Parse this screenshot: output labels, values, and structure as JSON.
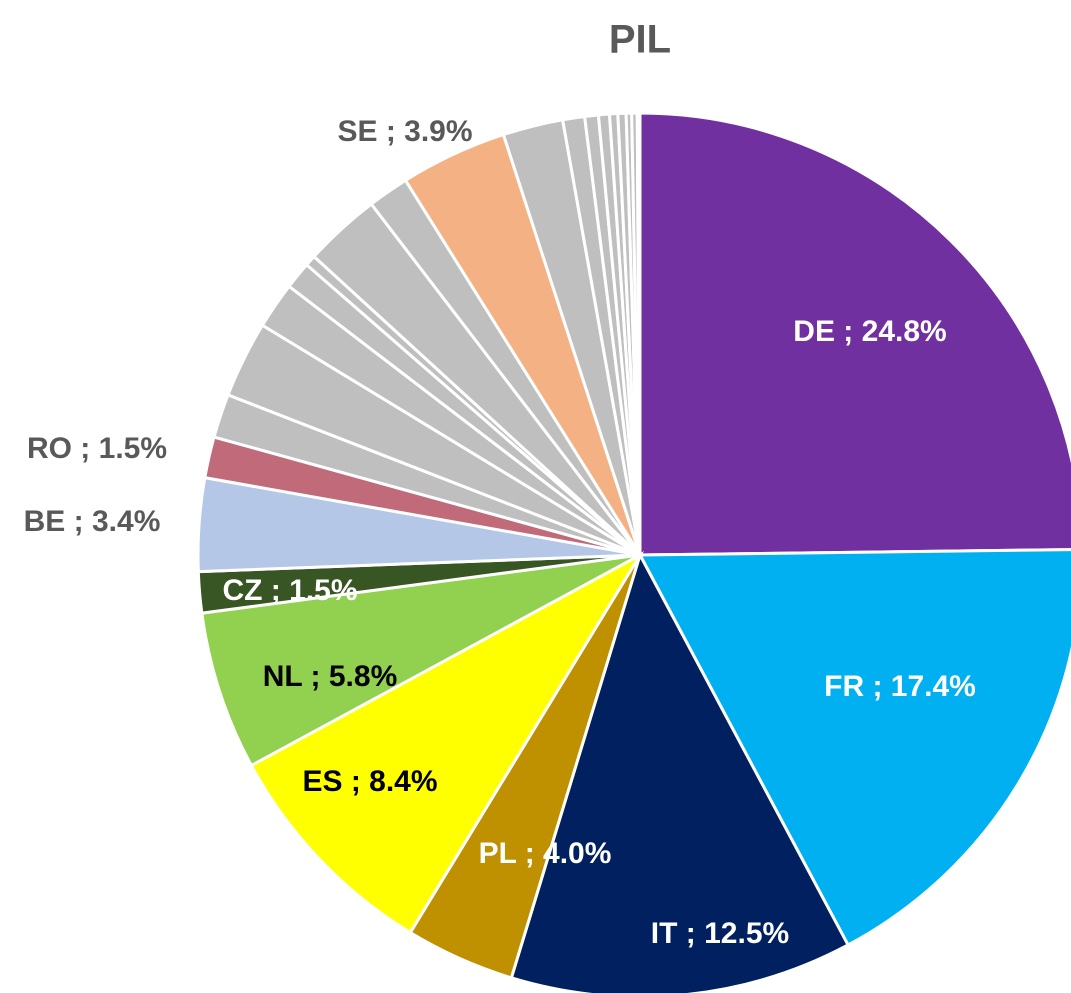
{
  "chart_data": {
    "type": "pie",
    "title": "PIL",
    "label_separator": " ; ",
    "categories": [
      "DE",
      "FR",
      "IT",
      "PL",
      "ES",
      "NL",
      "CZ",
      "BE",
      "RO",
      null,
      null,
      null,
      null,
      null,
      null,
      null,
      "SE",
      null,
      null,
      null,
      null,
      null,
      null,
      null,
      null,
      null
    ],
    "values": [
      24.8,
      17.4,
      12.5,
      4.0,
      8.4,
      5.8,
      1.5,
      3.4,
      1.5,
      1.6,
      2.8,
      1.7,
      1.0,
      0.4,
      2.8,
      1.5,
      3.9,
      2.2,
      0.8,
      0.5,
      0.4,
      0.3,
      0.3,
      0.2,
      0.2,
      0.1
    ],
    "value_labels": [
      "24.8%",
      "17.4%",
      "12.5%",
      "4.0%",
      "8.4%",
      "5.8%",
      "1.5%",
      "3.4%",
      "1.5%",
      null,
      null,
      null,
      null,
      null,
      null,
      null,
      "3.9%",
      null,
      null,
      null,
      null,
      null,
      null,
      null,
      null,
      null
    ],
    "colors": [
      "#7030a0",
      "#00b0f0",
      "#002060",
      "#bf9000",
      "#ffff00",
      "#92d050",
      "#375623",
      "#b4c7e7",
      "#c06a7a",
      "#bfbfbf",
      "#bfbfbf",
      "#bfbfbf",
      "#bfbfbf",
      "#bfbfbf",
      "#bfbfbf",
      "#bfbfbf",
      "#f4b183",
      "#bfbfbf",
      "#bfbfbf",
      "#bfbfbf",
      "#bfbfbf",
      "#bfbfbf",
      "#bfbfbf",
      "#bfbfbf",
      "#bfbfbf",
      "#bfbfbf"
    ],
    "label_colors": [
      "#ffffff",
      "#ffffff",
      "#ffffff",
      "#ffffff",
      "#000000",
      "#000000",
      "#ffffff",
      "#595959",
      "#595959",
      null,
      null,
      null,
      null,
      null,
      null,
      null,
      "#595959",
      null,
      null,
      null,
      null,
      null,
      null,
      null,
      null,
      null
    ]
  }
}
